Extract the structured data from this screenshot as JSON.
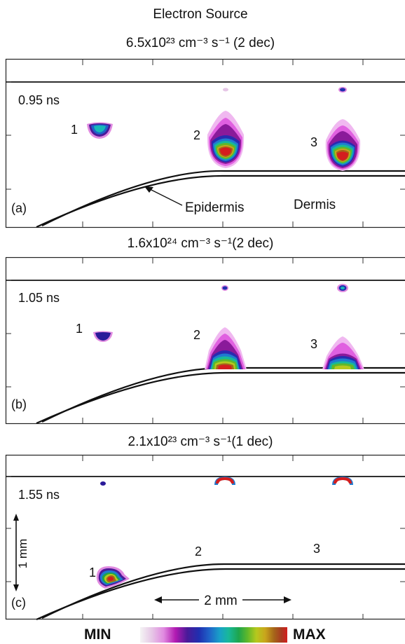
{
  "figure": {
    "title": "Electron Source",
    "scale_min_label": "MIN",
    "scale_max_label": "MAX",
    "colormap": [
      "#f4f4f4",
      "#e6c7e6",
      "#e08ae0",
      "#b21ab2",
      "#4a1a99",
      "#1f2fb0",
      "#1f63c8",
      "#18a0c8",
      "#18b89a",
      "#1ea54c",
      "#60b82a",
      "#b6c81e",
      "#c9a51c",
      "#a5651a",
      "#a83a20",
      "#d41e1e"
    ]
  },
  "panels": [
    {
      "header": "6.5x10²³ cm⁻³ s⁻¹ (2 dec)",
      "time": "0.95 ns",
      "letter": "(a)",
      "sources": [
        {
          "label": "1",
          "level": 0.5
        },
        {
          "label": "2",
          "level": 1.0
        },
        {
          "label": "3",
          "level": 1.0
        }
      ],
      "annotations": {
        "epidermis": "Epidermis",
        "dermis": "Dermis"
      }
    },
    {
      "header": "1.6x10²⁴ cm⁻³ s⁻¹(2 dec)",
      "time": "1.05 ns",
      "letter": "(b)",
      "sources": [
        {
          "label": "1",
          "level": 0.3
        },
        {
          "label": "2",
          "level": 1.0
        },
        {
          "label": "3",
          "level": 0.9
        }
      ]
    },
    {
      "header": "2.1x10²³ cm⁻³ s⁻¹(1 dec)",
      "time": "1.55 ns",
      "letter": "(c)",
      "sources": [
        {
          "label": "1",
          "level": 1.0
        },
        {
          "label": "2",
          "level": 1.0
        },
        {
          "label": "3",
          "level": 1.0
        }
      ],
      "scale_bars": {
        "vertical": "1 mm",
        "horizontal": "2 mm"
      }
    }
  ]
}
